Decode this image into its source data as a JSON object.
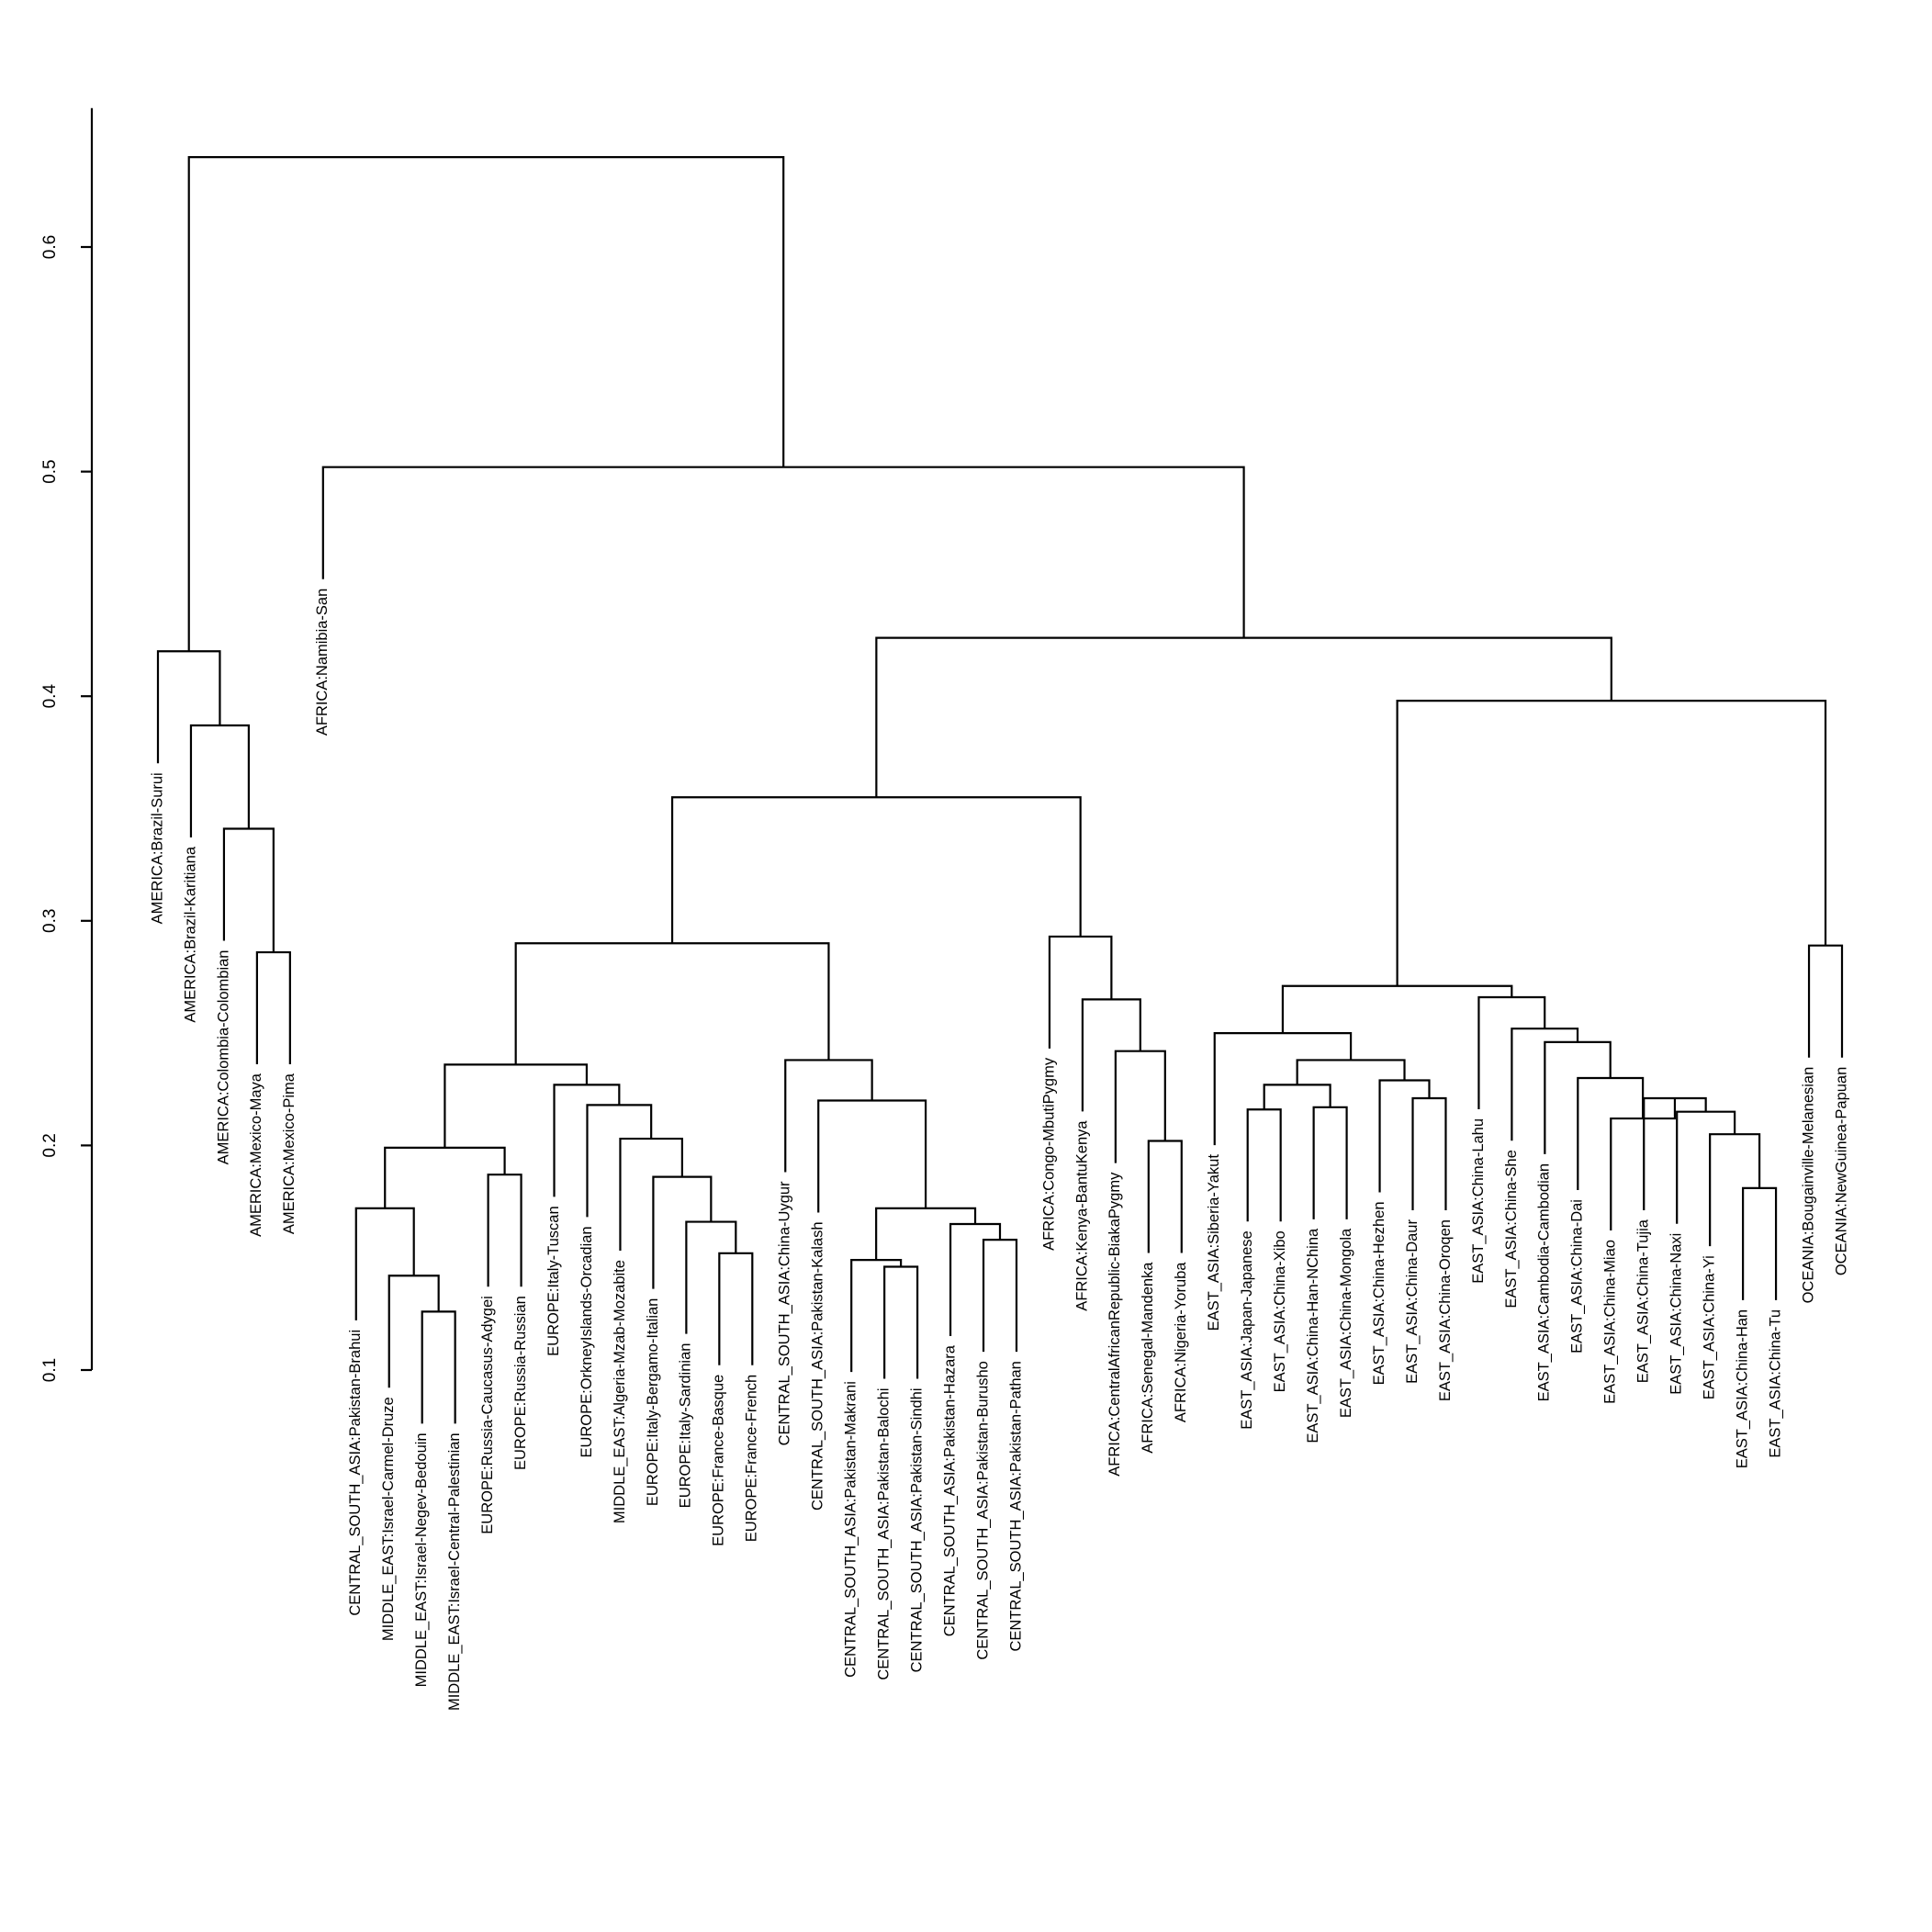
{
  "chart_data": {
    "type": "dendrogram",
    "title": "",
    "xlabel": "",
    "ylabel": "",
    "ylim": [
      0.1,
      0.67
    ],
    "yticks": [
      0.1,
      0.2,
      0.3,
      0.4,
      0.5,
      0.6
    ],
    "ytick_labels": [
      "0.1",
      "0.2",
      "0.3",
      "0.4",
      "0.5",
      "0.6"
    ],
    "leaf_base_height": 0.15,
    "leaves": [
      "AMERICA:Brazil-Surui",
      "AMERICA:Brazil-Karitiana",
      "AMERICA:Colombia-Colombian",
      "AMERICA:Mexico-Maya",
      "AMERICA:Mexico-Pima",
      "AFRICA:Namibia-San",
      "CENTRAL_SOUTH_ASIA:Pakistan-Brahui",
      "MIDDLE_EAST:Israel-Carmel-Druze",
      "MIDDLE_EAST:Israel-Negev-Bedouin",
      "MIDDLE_EAST:Israel-Central-Palestinian",
      "EUROPE:Russia-Caucasus-Adygei",
      "EUROPE:Russia-Russian",
      "EUROPE:Italy-Tuscan",
      "EUROPE:OrkneyIslands-Orcadian",
      "MIDDLE_EAST:Algeria-Mzab-Mozabite",
      "EUROPE:Italy-Bergamo-Italian",
      "EUROPE:Italy-Sardinian",
      "EUROPE:France-Basque",
      "EUROPE:France-French",
      "CENTRAL_SOUTH_ASIA:China-Uygur",
      "CENTRAL_SOUTH_ASIA:Pakistan-Kalash",
      "CENTRAL_SOUTH_ASIA:Pakistan-Makrani",
      "CENTRAL_SOUTH_ASIA:Pakistan-Balochi",
      "CENTRAL_SOUTH_ASIA:Pakistan-Sindhi",
      "CENTRAL_SOUTH_ASIA:Pakistan-Hazara",
      "CENTRAL_SOUTH_ASIA:Pakistan-Burusho",
      "CENTRAL_SOUTH_ASIA:Pakistan-Pathan",
      "AFRICA:Congo-MbutiPygmy",
      "AFRICA:Kenya-BantuKenya",
      "AFRICA:CentralAfricanRepublic-BiakaPygmy",
      "AFRICA:Senegal-Mandenka",
      "AFRICA:Nigeria-Yoruba",
      "EAST_ASIA:Siberia-Yakut",
      "EAST_ASIA:Japan-Japanese",
      "EAST_ASIA:China-Xibo",
      "EAST_ASIA:China-Han-NChina",
      "EAST_ASIA:China-Mongola",
      "EAST_ASIA:China-Hezhen",
      "EAST_ASIA:China-Daur",
      "EAST_ASIA:China-Oroqen",
      "EAST_ASIA:China-Lahu",
      "EAST_ASIA:China-She",
      "EAST_ASIA:Cambodia-Cambodian",
      "EAST_ASIA:China-Dai",
      "EAST_ASIA:China-Miao",
      "EAST_ASIA:China-Tujia",
      "EAST_ASIA:China-Naxi",
      "EAST_ASIA:China-Yi",
      "EAST_ASIA:China-Han",
      "EAST_ASIA:China-Tu",
      "OCEANIA:Bougainville-Melanesian",
      "OCEANIA:NewGuinea-Papuan"
    ],
    "merges": [
      {
        "left": 3,
        "right": 4,
        "height": 0.286
      },
      {
        "left": 2,
        "right": "m0",
        "height": 0.341
      },
      {
        "left": 1,
        "right": "m1",
        "height": 0.387
      },
      {
        "left": 0,
        "right": "m2",
        "height": 0.42
      },
      {
        "left": 8,
        "right": 9,
        "height": 0.126
      },
      {
        "left": 7,
        "right": "m4",
        "height": 0.142
      },
      {
        "left": 6,
        "right": "m5",
        "height": 0.172
      },
      {
        "left": 10,
        "right": 11,
        "height": 0.187
      },
      {
        "left": "m6",
        "right": "m7",
        "height": 0.199
      },
      {
        "left": 17,
        "right": 18,
        "height": 0.152
      },
      {
        "left": 16,
        "right": "m9",
        "height": 0.166
      },
      {
        "left": 15,
        "right": "m10",
        "height": 0.186
      },
      {
        "left": 14,
        "right": "m11",
        "height": 0.203
      },
      {
        "left": 13,
        "right": "m12",
        "height": 0.218
      },
      {
        "left": 12,
        "right": "m13",
        "height": 0.227
      },
      {
        "left": "m8",
        "right": "m14",
        "height": 0.236
      },
      {
        "left": 22,
        "right": 23,
        "height": 0.146
      },
      {
        "left": 21,
        "right": "m16",
        "height": 0.149
      },
      {
        "left": 25,
        "right": 26,
        "height": 0.158
      },
      {
        "left": 24,
        "right": "m18",
        "height": 0.165
      },
      {
        "left": "m17",
        "right": "m19",
        "height": 0.172
      },
      {
        "left": 20,
        "right": "m20",
        "height": 0.22
      },
      {
        "left": 19,
        "right": "m21",
        "height": 0.238
      },
      {
        "left": "m15",
        "right": "m22",
        "height": 0.29
      },
      {
        "left": 30,
        "right": 31,
        "height": 0.202
      },
      {
        "left": 29,
        "right": "m24",
        "height": 0.242
      },
      {
        "left": 28,
        "right": "m25",
        "height": 0.265
      },
      {
        "left": 27,
        "right": "m26",
        "height": 0.293
      },
      {
        "left": "m23",
        "right": "m27",
        "height": 0.355
      },
      {
        "left": 33,
        "right": 34,
        "height": 0.216
      },
      {
        "left": 35,
        "right": 36,
        "height": 0.217
      },
      {
        "left": "m29",
        "right": "m30",
        "height": 0.227
      },
      {
        "left": 38,
        "right": 39,
        "height": 0.221
      },
      {
        "left": 37,
        "right": "m32",
        "height": 0.229
      },
      {
        "left": "m31",
        "right": "m33",
        "height": 0.238
      },
      {
        "left": 32,
        "right": "m34",
        "height": 0.25
      },
      {
        "left": 48,
        "right": 49,
        "height": 0.181
      },
      {
        "left": 47,
        "right": "m36",
        "height": 0.205
      },
      {
        "left": 46,
        "right": "m37",
        "height": 0.215
      },
      {
        "left": 45,
        "right": "m38",
        "height": 0.221
      },
      {
        "left": 44,
        "right": "m39",
        "height": 0.212
      },
      {
        "left": 43,
        "right": "m40",
        "height": 0.23
      },
      {
        "left": 42,
        "right": "m41",
        "height": 0.246
      },
      {
        "left": 41,
        "right": "m42",
        "height": 0.252
      },
      {
        "left": 40,
        "right": "m43",
        "height": 0.266
      },
      {
        "left": "m35",
        "right": "m44",
        "height": 0.271
      },
      {
        "left": 50,
        "right": 51,
        "height": 0.289
      },
      {
        "left": "m45",
        "right": "m46",
        "height": 0.398
      },
      {
        "left": "m28",
        "right": "m47",
        "height": 0.426
      },
      {
        "left": 5,
        "right": "m48",
        "height": 0.502
      },
      {
        "left": "m3",
        "right": "m49",
        "height": 0.64
      }
    ]
  }
}
